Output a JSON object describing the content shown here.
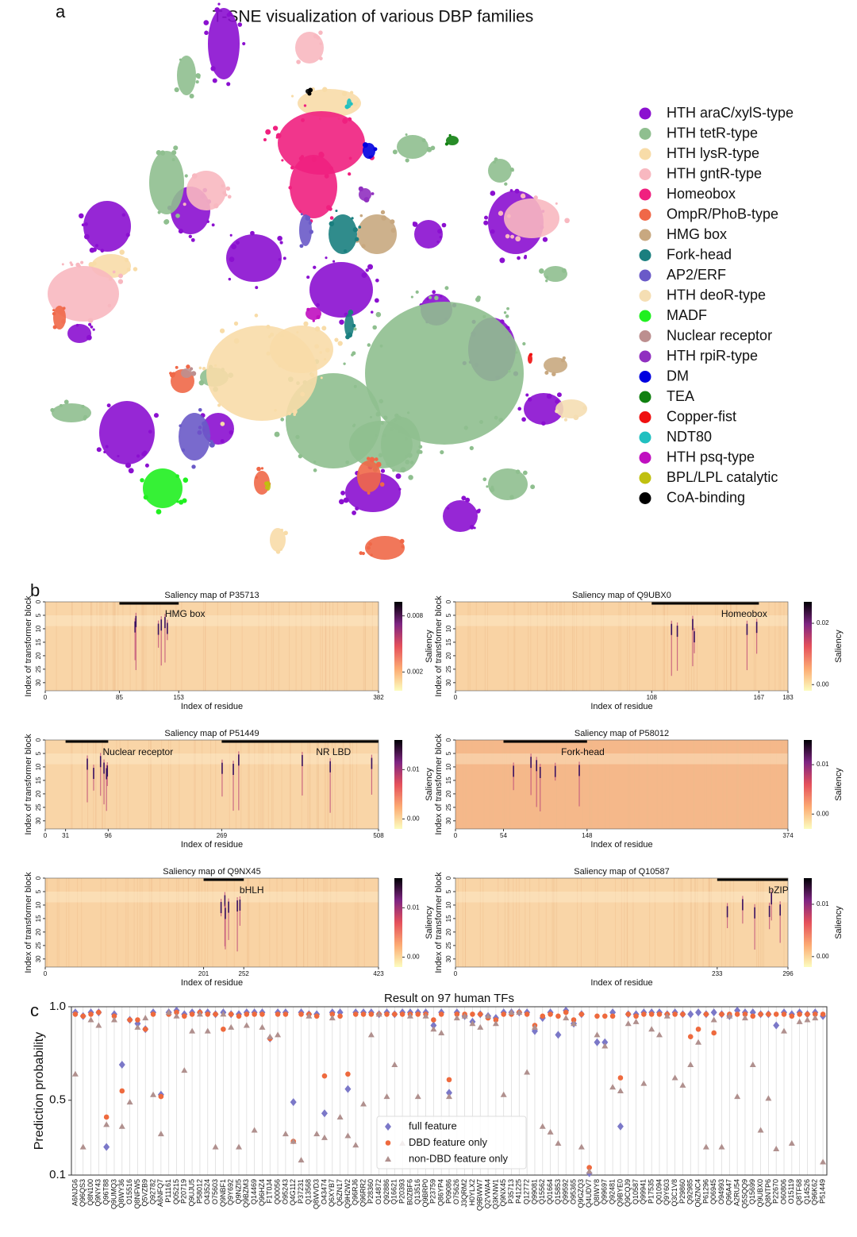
{
  "chart_data": [
    {
      "type": "tsne",
      "panel": "a",
      "title": "T-SNE visualization of various DBP families",
      "series": [
        {
          "name": "HTH araC/xylS-type",
          "color": "#8b10d0"
        },
        {
          "name": "HTH tetR-type",
          "color": "#8fbf8f"
        },
        {
          "name": "HTH lysR-type",
          "color": "#f8dca8"
        },
        {
          "name": "HTH gntR-type",
          "color": "#f8b8c0"
        },
        {
          "name": "Homeobox",
          "color": "#f0207f"
        },
        {
          "name": "OmpR/PhoB-type",
          "color": "#f06848"
        },
        {
          "name": "HMG box",
          "color": "#c8a880"
        },
        {
          "name": "Fork-head",
          "color": "#1a7f7f"
        },
        {
          "name": "AP2/ERF",
          "color": "#6a5ac8"
        },
        {
          "name": "HTH deoR-type",
          "color": "#f5deb3"
        },
        {
          "name": "MADF",
          "color": "#20f020"
        },
        {
          "name": "Nuclear receptor",
          "color": "#bc8f8f"
        },
        {
          "name": "HTH rpiR-type",
          "color": "#9030c0"
        },
        {
          "name": "DM",
          "color": "#0000e0"
        },
        {
          "name": "TEA",
          "color": "#108010"
        },
        {
          "name": "Copper-fist",
          "color": "#f01010"
        },
        {
          "name": "NDT80",
          "color": "#20c0c0"
        },
        {
          "name": "HTH psq-type",
          "color": "#c010c0"
        },
        {
          "name": "BPL/LPL catalytic",
          "color": "#c0c010"
        },
        {
          "name": "CoA-binding",
          "color": "#000000"
        }
      ]
    },
    {
      "type": "heatmap",
      "panel": "b",
      "title": "Saliency map of P35713",
      "xlabel": "Index of residue",
      "ylabel": "Index of transformer block",
      "clabel": "Saliency",
      "xlim": [
        0,
        382
      ],
      "xticks": [
        0,
        85,
        153,
        382
      ],
      "ylim": [
        0,
        33
      ],
      "yticks": [
        0,
        5,
        10,
        15,
        20,
        25,
        30
      ],
      "clim": [
        0,
        0.0095
      ],
      "cticks": [
        0.002,
        0.008
      ],
      "background": "#f9d5a7",
      "domains": [
        {
          "label": "HMG box",
          "start": 85,
          "end": 153
        }
      ]
    },
    {
      "type": "heatmap",
      "title": "Saliency map of Q9UBX0",
      "xlabel": "Index of residue",
      "ylabel": "Index of transformer block",
      "clabel": "Saliency",
      "xlim": [
        0,
        183
      ],
      "xticks": [
        0,
        108,
        167,
        183
      ],
      "ylim": [
        0,
        33
      ],
      "yticks": [
        0,
        5,
        10,
        15,
        20,
        25,
        30
      ],
      "clim": [
        -0.002,
        0.027
      ],
      "cticks": [
        {
          "value": 0,
          "label": "0.00"
        },
        0.02
      ],
      "background": "#f9d3a4",
      "domains": [
        {
          "label": "Homeobox",
          "start": 108,
          "end": 167
        }
      ]
    },
    {
      "type": "heatmap",
      "title": "Saliency map of P51449",
      "xlabel": "Index of residue",
      "ylabel": "Index of transformer block",
      "clabel": "Saliency",
      "xlim": [
        0,
        508
      ],
      "xticks": [
        0,
        31,
        96,
        269,
        508
      ],
      "ylim": [
        0,
        33
      ],
      "yticks": [
        0,
        5,
        10,
        15,
        20,
        25,
        30
      ],
      "clim": [
        -0.002,
        0.016
      ],
      "cticks": [
        {
          "value": 0,
          "label": "0.00"
        },
        0.01
      ],
      "background": "#f9d5a7",
      "domains": [
        {
          "label": "Nuclear receptor",
          "start": 31,
          "end": 96
        },
        {
          "label": "NR LBD",
          "start": 269,
          "end": 508
        }
      ]
    },
    {
      "type": "heatmap",
      "title": "Saliency map of P58012",
      "xlabel": "Index of residue",
      "ylabel": "Index of transformer block",
      "clabel": "Saliency",
      "xlim": [
        0,
        374
      ],
      "xticks": [
        0,
        54,
        148,
        374
      ],
      "ylim": [
        0,
        33
      ],
      "yticks": [
        0,
        5,
        10,
        15,
        20,
        25,
        30
      ],
      "clim": [
        -0.003,
        0.015
      ],
      "cticks": [
        {
          "value": 0,
          "label": "0.00"
        },
        0.01
      ],
      "background": "#f5b88a",
      "domains": [
        {
          "label": "Fork-head",
          "start": 54,
          "end": 148
        }
      ]
    },
    {
      "type": "heatmap",
      "title": "Saliency map of Q9NX45",
      "xlabel": "Index of residue",
      "ylabel": "Index of transformer block",
      "clabel": "Saliency",
      "xlim": [
        0,
        423
      ],
      "xticks": [
        0,
        201,
        252,
        423
      ],
      "ylim": [
        0,
        33
      ],
      "yticks": [
        0,
        5,
        10,
        15,
        20,
        25,
        30
      ],
      "clim": [
        -0.002,
        0.016
      ],
      "cticks": [
        {
          "value": 0,
          "label": "0.00"
        },
        0.01
      ],
      "background": "#f9d3a4",
      "domains": [
        {
          "label": "bHLH",
          "start": 201,
          "end": 252
        }
      ]
    },
    {
      "type": "heatmap",
      "title": "Saliency map of Q10587",
      "xlabel": "Index of residue",
      "ylabel": "Index of transformer block",
      "clabel": "Saliency",
      "xlim": [
        0,
        296
      ],
      "xticks": [
        0,
        233,
        296
      ],
      "ylim": [
        0,
        33
      ],
      "yticks": [
        0,
        5,
        10,
        15,
        20,
        25,
        30
      ],
      "clim": [
        -0.002,
        0.015
      ],
      "cticks": [
        {
          "value": 0,
          "label": "0.00"
        },
        0.01
      ],
      "background": "#f9d5a7",
      "domains": [
        {
          "label": "bZIP",
          "start": 233,
          "end": 296
        }
      ]
    },
    {
      "type": "dots",
      "panel": "c",
      "title": "Result on 97 human TFs",
      "ylabel": "Prediction probability",
      "ylim": [
        0.1,
        1.0
      ],
      "yticks": [
        0.1,
        0.5,
        {
          "value": 1,
          "label": "1.0"
        }
      ],
      "grid": true,
      "categories": [
        "A6NJG6",
        "Q96QS3",
        "Q8N100",
        "Q9NY43",
        "Q96T88",
        "Q9UMQ3",
        "Q8WY36",
        "O15516",
        "Q8NFW5",
        "Q5VZB9",
        "Q92782",
        "A6NFQ7",
        "P11161",
        "Q05215",
        "P20719",
        "Q9UJU5",
        "P58012",
        "O43524",
        "O75603",
        "Q9NBF1",
        "Q9Y692",
        "Q9NZI5",
        "Q9BZM3",
        "Q14469",
        "Q96HZ4",
        "F1T0J4",
        "Q00056",
        "O95243",
        "Q4G112",
        "P37231",
        "Q13568",
        "Q8WVD3",
        "O43474",
        "Q6XYB7",
        "Q6ZN17",
        "Q9H2W2",
        "Q96RJ6",
        "Q96RR2",
        "P28360",
        "O14872",
        "Q92886",
        "Q16621",
        "P20393",
        "B0ZBF6",
        "Q13516",
        "Q9BRP0",
        "P23759",
        "Q86YP4",
        "P09086",
        "O75626",
        "J3QRM2",
        "H0YLX2",
        "Q9BWW7",
        "Q2VWA4",
        "Q3KNW1",
        "Q9NX45",
        "P35713",
        "P41225",
        "Q12772",
        "Q99081",
        "Q15562",
        "Q01664",
        "Q15853",
        "Q99592",
        "O95365",
        "Q9GZQ3",
        "Q4UDV7",
        "Q8IWY8",
        "Q99697",
        "Q92481",
        "Q9BYE0",
        "Q9CQJ9",
        "Q10587",
        "Q99941",
        "P17535",
        "Q01094",
        "Q9Y603",
        "Q3C1V8",
        "P29860",
        "Q92985",
        "Q6ZNC4",
        "P61296",
        "Q06945",
        "O94993",
        "Q96A47",
        "A2RU54",
        "Q5SQQ9",
        "Q15699",
        "Q9UBX0",
        "Q8NTP6",
        "P22670",
        "O60806",
        "O15119",
        "Q8TF68",
        "Q14526",
        "Q96K62",
        "P51449"
      ],
      "series": [
        {
          "name": "full feature",
          "color": "#7b78c8",
          "marker": "diamond",
          "values": [
            0.97,
            0.95,
            0.97,
            0.97,
            0.25,
            0.96,
            0.69,
            0.93,
            0.91,
            0.88,
            0.97,
            0.53,
            0.97,
            0.98,
            0.96,
            0.97,
            0.97,
            0.97,
            0.96,
            0.97,
            0.96,
            0.96,
            0.97,
            0.97,
            0.97,
            0.83,
            0.97,
            0.97,
            0.49,
            0.97,
            0.96,
            0.96,
            0.43,
            0.97,
            0.97,
            0.56,
            0.97,
            0.97,
            0.97,
            0.96,
            0.97,
            0.96,
            0.97,
            0.97,
            0.97,
            0.97,
            0.9,
            0.97,
            0.54,
            0.97,
            0.95,
            0.92,
            0.96,
            0.95,
            0.94,
            0.97,
            0.97,
            0.97,
            0.97,
            0.87,
            0.94,
            0.97,
            0.85,
            0.98,
            0.91,
            0.96,
            0.11,
            0.81,
            0.81,
            0.97,
            0.36,
            0.96,
            0.96,
            0.97,
            0.97,
            0.97,
            0.96,
            0.97,
            0.96,
            0.96,
            0.97,
            0.96,
            0.97,
            0.96,
            0.95,
            0.98,
            0.97,
            0.97,
            0.96,
            0.96,
            0.9,
            0.97,
            0.96,
            0.97,
            0.96,
            0.97,
            0.95
          ]
        },
        {
          "name": "DBD feature only",
          "color": "#ee6a3e",
          "marker": "circle",
          "values": [
            0.96,
            0.95,
            0.96,
            0.97,
            0.41,
            0.95,
            0.55,
            0.93,
            0.93,
            0.88,
            0.96,
            0.52,
            0.96,
            0.97,
            0.95,
            0.96,
            0.97,
            0.96,
            0.96,
            0.88,
            0.96,
            0.95,
            0.96,
            0.96,
            0.96,
            0.83,
            0.96,
            0.96,
            0.28,
            0.96,
            0.96,
            0.95,
            0.63,
            0.96,
            0.95,
            0.64,
            0.96,
            0.96,
            0.96,
            0.96,
            0.96,
            0.96,
            0.96,
            0.96,
            0.96,
            0.96,
            0.93,
            0.96,
            0.61,
            0.96,
            0.96,
            0.96,
            0.96,
            0.94,
            0.93,
            0.96,
            0.96,
            0.97,
            0.96,
            0.9,
            0.95,
            0.96,
            0.95,
            0.97,
            0.93,
            0.96,
            0.14,
            0.95,
            0.95,
            0.95,
            0.62,
            0.96,
            0.95,
            0.96,
            0.96,
            0.96,
            0.96,
            0.96,
            0.96,
            0.84,
            0.88,
            0.96,
            0.86,
            0.96,
            0.96,
            0.96,
            0.96,
            0.95,
            0.96,
            0.96,
            0.96,
            0.96,
            0.95,
            0.96,
            0.96,
            0.96,
            0.96
          ]
        },
        {
          "name": "non-DBD feature only",
          "color": "#b0908e",
          "marker": "triangle",
          "values": [
            0.64,
            0.25,
            0.93,
            0.9,
            0.37,
            0.93,
            0.36,
            0.49,
            0.89,
            0.94,
            0.53,
            0.32,
            0.97,
            0.95,
            0.66,
            0.87,
            0.96,
            0.87,
            0.25,
            0.96,
            0.89,
            0.25,
            0.9,
            0.34,
            0.89,
            0.84,
            0.85,
            0.32,
            0.28,
            0.18,
            0.95,
            0.32,
            0.3,
            0.94,
            0.41,
            0.31,
            0.26,
            0.48,
            0.85,
            0.96,
            0.52,
            0.69,
            0.27,
            0.95,
            0.52,
            0.95,
            0.88,
            0.86,
            0.52,
            0.94,
            0.95,
            0.91,
            0.89,
            0.95,
            0.91,
            0.53,
            0.97,
            0.97,
            0.65,
            0.89,
            0.36,
            0.33,
            0.27,
            0.94,
            0.91,
            0.25,
            0.12,
            0.85,
            0.79,
            0.57,
            0.55,
            0.91,
            0.92,
            0.59,
            0.88,
            0.85,
            0.95,
            0.62,
            0.58,
            0.69,
            0.81,
            0.25,
            0.93,
            0.25,
            0.95,
            0.52,
            0.94,
            0.69,
            0.34,
            0.51,
            0.24,
            0.87,
            0.27,
            0.92,
            0.93,
            0.94,
            0.17
          ]
        }
      ]
    }
  ]
}
